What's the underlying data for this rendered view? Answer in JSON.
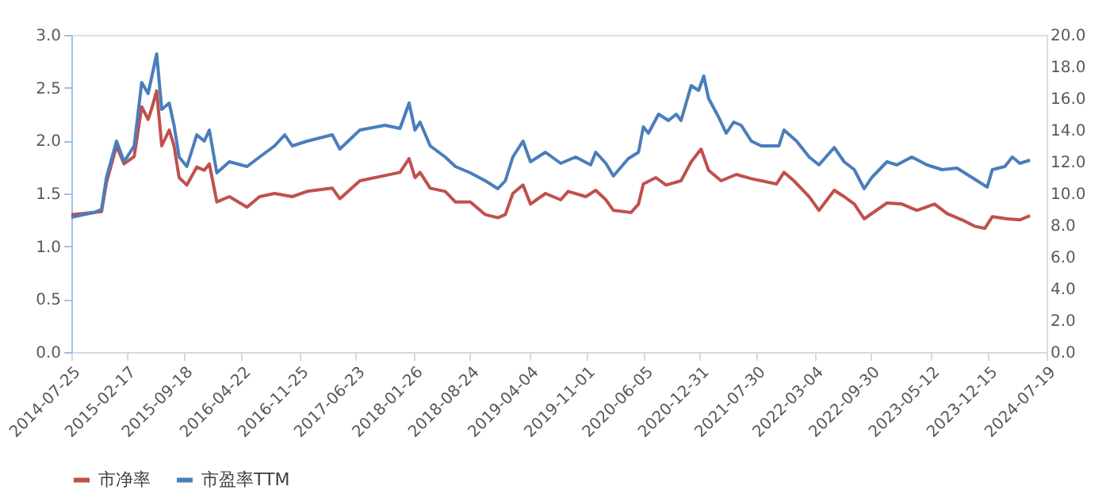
{
  "chart_data": {
    "type": "line",
    "legend": "bottom",
    "line_style": "solid",
    "xlim": [
      "2014-07-25",
      "2024-07-19"
    ],
    "xticks": [
      "2014-07-25",
      "2015-02-17",
      "2015-09-18",
      "2016-04-22",
      "2016-11-25",
      "2017-06-23",
      "2018-01-26",
      "2018-08-24",
      "2019-04-04",
      "2019-11-01",
      "2020-06-05",
      "2020-12-31",
      "2021-07-30",
      "2022-03-04",
      "2022-09-30",
      "2023-05-12",
      "2023-12-15",
      "2024-07-19"
    ],
    "ylim": [
      0,
      3
    ],
    "yticks": [
      {
        "value": 0,
        "label": "0.0"
      },
      {
        "value": 0.5,
        "label": "0.5"
      },
      {
        "value": 1,
        "label": "1.0"
      },
      {
        "value": 1.5,
        "label": "1.5"
      },
      {
        "value": 2,
        "label": "2.0"
      },
      {
        "value": 2.5,
        "label": "2.5"
      },
      {
        "value": 3,
        "label": "3.0"
      }
    ],
    "y2lim": [
      0,
      20
    ],
    "y2ticks": [
      {
        "value": 0,
        "label": "0.0"
      },
      {
        "value": 2,
        "label": "2.0"
      },
      {
        "value": 4,
        "label": "4.0"
      },
      {
        "value": 6,
        "label": "6.0"
      },
      {
        "value": 8,
        "label": "8.0"
      },
      {
        "value": 10,
        "label": "10.0"
      },
      {
        "value": 12,
        "label": "12.0"
      },
      {
        "value": 14,
        "label": "14.0"
      },
      {
        "value": 16,
        "label": "16.0"
      },
      {
        "value": 18,
        "label": "18.0"
      },
      {
        "value": 20,
        "label": "20.0"
      }
    ],
    "series": [
      {
        "name": "市净率",
        "color": "#c0504d",
        "x": [
          "2014-07-25",
          "2014-10-17",
          "2014-11-15",
          "2014-12-03",
          "2015-01-10",
          "2015-02-07",
          "2015-03-17",
          "2015-04-14",
          "2015-05-08",
          "2015-05-21",
          "2015-06-09",
          "2015-06-28",
          "2015-07-26",
          "2015-08-13",
          "2015-09-01",
          "2015-09-30",
          "2015-11-06",
          "2015-12-04",
          "2015-12-23",
          "2016-01-20",
          "2016-03-07",
          "2016-05-12",
          "2016-06-28",
          "2016-08-23",
          "2016-10-28",
          "2016-12-23",
          "2017-03-27",
          "2017-04-24",
          "2017-07-08",
          "2017-10-10",
          "2017-12-05",
          "2018-01-08",
          "2018-01-30",
          "2018-02-18",
          "2018-03-28",
          "2018-05-23",
          "2018-06-30",
          "2018-08-25",
          "2018-10-20",
          "2018-12-06",
          "2019-01-03",
          "2019-01-31",
          "2019-03-10",
          "2019-04-07",
          "2019-06-02",
          "2019-07-29",
          "2019-08-26",
          "2019-10-31",
          "2019-12-07",
          "2020-01-14",
          "2020-02-11",
          "2020-04-17",
          "2020-05-15",
          "2020-06-02",
          "2020-07-19",
          "2020-08-26",
          "2020-10-21",
          "2020-11-28",
          "2021-01-04",
          "2021-02-01",
          "2021-03-20",
          "2021-05-16",
          "2021-07-11",
          "2021-10-13",
          "2021-11-10",
          "2021-12-17",
          "2022-02-12",
          "2022-03-21",
          "2022-05-17",
          "2022-06-23",
          "2022-07-31",
          "2022-09-06",
          "2022-11-30",
          "2023-01-25",
          "2023-03-22",
          "2023-05-27",
          "2023-07-13",
          "2023-09-07",
          "2023-10-24",
          "2023-12-01",
          "2023-12-29",
          "2024-02-23",
          "2024-04-10",
          "2024-05-18"
        ],
        "values": [
          1.3,
          1.32,
          1.33,
          1.6,
          1.95,
          1.78,
          1.85,
          2.32,
          2.2,
          2.3,
          2.47,
          1.95,
          2.1,
          1.95,
          1.65,
          1.58,
          1.75,
          1.72,
          1.78,
          1.42,
          1.47,
          1.37,
          1.47,
          1.5,
          1.47,
          1.52,
          1.55,
          1.45,
          1.62,
          1.67,
          1.7,
          1.83,
          1.65,
          1.7,
          1.55,
          1.52,
          1.42,
          1.42,
          1.3,
          1.27,
          1.3,
          1.5,
          1.58,
          1.4,
          1.5,
          1.44,
          1.52,
          1.47,
          1.53,
          1.44,
          1.34,
          1.32,
          1.4,
          1.59,
          1.65,
          1.58,
          1.62,
          1.8,
          1.92,
          1.72,
          1.62,
          1.68,
          1.64,
          1.59,
          1.7,
          1.62,
          1.47,
          1.34,
          1.53,
          1.47,
          1.4,
          1.26,
          1.41,
          1.4,
          1.34,
          1.4,
          1.31,
          1.25,
          1.19,
          1.17,
          1.28,
          1.26,
          1.25,
          1.29
        ]
      },
      {
        "name": "市盈率TTM",
        "color": "#4a7ebb",
        "axis": "y2",
        "x": [
          "2014-07-25",
          "2014-10-17",
          "2014-11-15",
          "2014-12-03",
          "2015-01-10",
          "2015-02-07",
          "2015-03-17",
          "2015-04-14",
          "2015-05-08",
          "2015-05-21",
          "2015-06-09",
          "2015-06-28",
          "2015-07-26",
          "2015-08-13",
          "2015-09-01",
          "2015-09-30",
          "2015-11-06",
          "2015-12-04",
          "2015-12-23",
          "2016-01-20",
          "2016-03-07",
          "2016-05-12",
          "2016-06-28",
          "2016-08-23",
          "2016-09-30",
          "2016-10-28",
          "2016-12-23",
          "2017-03-27",
          "2017-04-24",
          "2017-07-08",
          "2017-10-10",
          "2017-12-05",
          "2018-01-08",
          "2018-01-30",
          "2018-02-18",
          "2018-03-28",
          "2018-05-23",
          "2018-06-30",
          "2018-08-25",
          "2018-10-20",
          "2018-12-06",
          "2019-01-03",
          "2019-01-31",
          "2019-03-10",
          "2019-04-07",
          "2019-06-02",
          "2019-07-29",
          "2019-09-23",
          "2019-11-18",
          "2019-12-07",
          "2020-01-14",
          "2020-02-11",
          "2020-04-07",
          "2020-05-15",
          "2020-06-02",
          "2020-06-21",
          "2020-07-29",
          "2020-09-04",
          "2020-10-03",
          "2020-10-21",
          "2020-11-28",
          "2020-12-26",
          "2021-01-14",
          "2021-02-01",
          "2021-03-11",
          "2021-04-08",
          "2021-05-06",
          "2021-06-03",
          "2021-07-11",
          "2021-08-17",
          "2021-10-22",
          "2021-11-10",
          "2021-12-27",
          "2022-02-12",
          "2022-03-21",
          "2022-05-17",
          "2022-06-23",
          "2022-07-31",
          "2022-09-06",
          "2022-10-04",
          "2022-11-30",
          "2023-01-06",
          "2023-03-03",
          "2023-04-29",
          "2023-06-24",
          "2023-08-19",
          "2023-09-26",
          "2023-11-12",
          "2023-12-10",
          "2023-12-29",
          "2024-02-14",
          "2024-03-13",
          "2024-04-10",
          "2024-05-18"
        ],
        "values": [
          8.5,
          8.8,
          9.0,
          11.0,
          13.3,
          12.0,
          13.0,
          17.0,
          16.3,
          17.3,
          18.8,
          15.3,
          15.7,
          14.3,
          12.3,
          11.7,
          13.7,
          13.3,
          14.0,
          11.3,
          12.0,
          11.7,
          12.3,
          13.0,
          13.7,
          13.0,
          13.3,
          13.7,
          12.8,
          14.0,
          14.3,
          14.1,
          15.7,
          14.0,
          14.5,
          13.0,
          12.3,
          11.7,
          11.3,
          10.8,
          10.3,
          10.8,
          12.3,
          13.3,
          12.0,
          12.6,
          11.9,
          12.3,
          11.8,
          12.6,
          11.9,
          11.1,
          12.2,
          12.6,
          14.2,
          13.8,
          15.0,
          14.6,
          15.0,
          14.6,
          16.8,
          16.5,
          17.4,
          16.0,
          14.8,
          13.8,
          14.5,
          14.3,
          13.3,
          13.0,
          13.0,
          14.0,
          13.3,
          12.3,
          11.8,
          12.9,
          12.0,
          11.5,
          10.3,
          11.0,
          12.0,
          11.8,
          12.3,
          11.8,
          11.5,
          11.6,
          11.2,
          10.7,
          10.4,
          11.5,
          11.7,
          12.3,
          11.9,
          12.1
        ]
      }
    ]
  }
}
